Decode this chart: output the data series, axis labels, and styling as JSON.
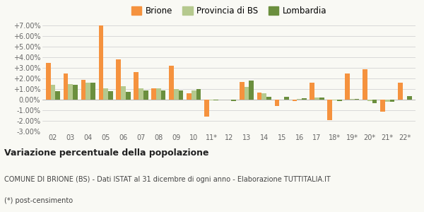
{
  "years": [
    "02",
    "03",
    "04",
    "05",
    "06",
    "07",
    "08",
    "09",
    "10",
    "11*",
    "12",
    "13",
    "14",
    "15",
    "16",
    "17",
    "18*",
    "19*",
    "20*",
    "21*",
    "22*"
  ],
  "brione": [
    3.5,
    2.5,
    1.9,
    7.0,
    3.8,
    2.6,
    1.1,
    3.2,
    0.6,
    -1.6,
    0.0,
    1.7,
    0.7,
    -0.6,
    -0.1,
    1.6,
    -1.9,
    2.5,
    2.9,
    -1.1,
    1.6
  ],
  "provincia_bs": [
    1.4,
    1.5,
    1.6,
    1.1,
    1.3,
    1.1,
    1.1,
    1.0,
    0.9,
    -0.05,
    0.0,
    1.2,
    0.6,
    0.0,
    0.1,
    0.2,
    -0.05,
    0.1,
    -0.1,
    -0.2,
    0.0
  ],
  "lombardia": [
    0.8,
    1.4,
    1.6,
    0.8,
    0.75,
    0.85,
    0.9,
    0.9,
    1.0,
    -0.05,
    -0.1,
    1.8,
    0.25,
    0.3,
    0.15,
    0.2,
    -0.1,
    0.05,
    -0.3,
    -0.2,
    0.35
  ],
  "brione_color": "#f5923e",
  "provincia_color": "#b5c98e",
  "lombardia_color": "#6b8f3e",
  "bg_color": "#f9f9f4",
  "ylim": [
    -3.0,
    7.0
  ],
  "yticks": [
    -3.0,
    -2.0,
    -1.0,
    0.0,
    1.0,
    2.0,
    3.0,
    4.0,
    5.0,
    6.0,
    7.0
  ],
  "ytick_labels": [
    "-3.00%",
    "-2.00%",
    "-1.00%",
    "0.00%",
    "+1.00%",
    "+2.00%",
    "+3.00%",
    "+4.00%",
    "+5.00%",
    "+6.00%",
    "+7.00%"
  ],
  "title_bold": "Variazione percentuale della popolazione",
  "subtitle": "COMUNE DI BRIONE (BS) - Dati ISTAT al 31 dicembre di ogni anno - Elaborazione TUTTITALIA.IT",
  "footnote": "(*) post-censimento"
}
